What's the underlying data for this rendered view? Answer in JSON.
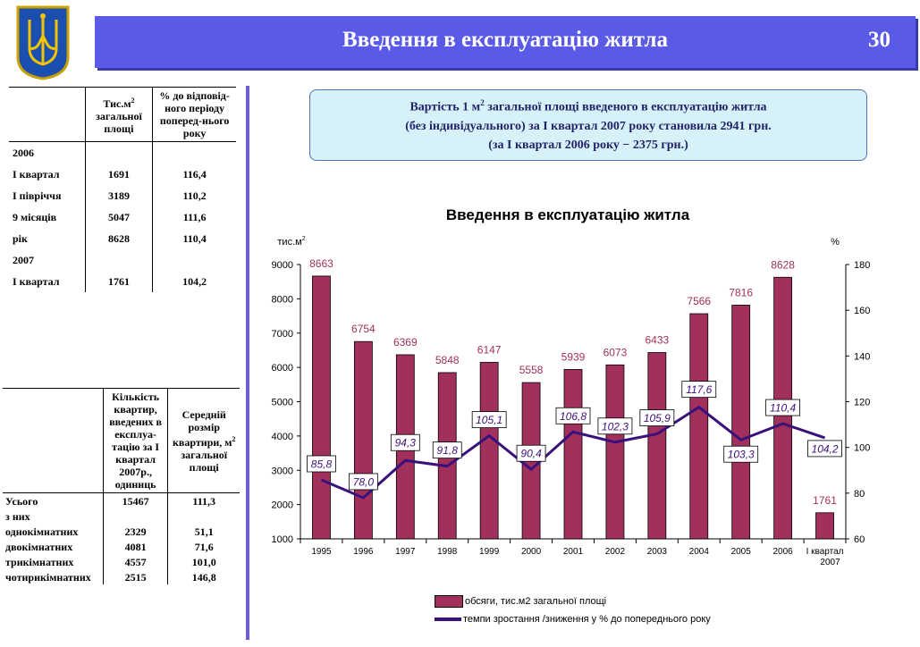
{
  "header": {
    "title": "Введення в експлуатацію житла",
    "page_number": "30"
  },
  "table1": {
    "headers": {
      "col1_a": "Тис.м",
      "col1_sup": "2",
      "col1_b": "загальної площі",
      "col2": "% до відповід-ного періоду поперед-нього року"
    },
    "rows": [
      {
        "label": "2006",
        "v1": "",
        "v2": ""
      },
      {
        "label": "І квартал",
        "v1": "1691",
        "v2": "116,4"
      },
      {
        "label": "І півріччя",
        "v1": "3189",
        "v2": "110,2"
      },
      {
        "label": "9 місяців",
        "v1": "5047",
        "v2": "111,6"
      },
      {
        "label": "рік",
        "v1": "8628",
        "v2": "110,4"
      },
      {
        "label": "2007",
        "v1": "",
        "v2": ""
      },
      {
        "label": "І квартал",
        "v1": "1761",
        "v2": "104,2"
      }
    ]
  },
  "table2": {
    "headers": {
      "col1": "Кількість квартир, введених в експлуа-тацію за І квартал 2007р., одиниць",
      "col2_a": "Середній розмір квартири, м",
      "col2_sup": "2",
      "col2_b": "загальної площі"
    },
    "rows": [
      {
        "label": "Усього",
        "v1": "15467",
        "v2": "111,3"
      },
      {
        "label": "з них",
        "v1": "",
        "v2": ""
      },
      {
        "label": "однокімнатних",
        "v1": "2329",
        "v2": "51,1"
      },
      {
        "label": "двокімнатних",
        "v1": "4081",
        "v2": "71,6"
      },
      {
        "label": "трикімнатних",
        "v1": "4557",
        "v2": "101,0"
      },
      {
        "label": "чотирикімнатних",
        "v1": "2515",
        "v2": "146,8"
      }
    ]
  },
  "info_box": {
    "line1_a": "Вартість 1 м",
    "line1_sup": "2",
    "line1_b": " загальної площі введеного в експлуатацію житла",
    "line2": "(без індивідуального) за І квартал 2007 року становила 2941 грн.",
    "line3": "(за І квартал 2006 року − 2375 грн.)"
  },
  "chart_data": {
    "type": "bar",
    "title": "Введення в експлуатацію житла",
    "categories": [
      "1995",
      "1996",
      "1997",
      "1998",
      "1999",
      "2000",
      "2001",
      "2002",
      "2003",
      "2004",
      "2005",
      "2006",
      "І квартал 2007"
    ],
    "series": [
      {
        "name": "обсяги, тис.м2 загальної площі",
        "type": "bar",
        "axis": "left",
        "color": "#a1305c",
        "values": [
          8663,
          6754,
          6369,
          5848,
          6147,
          5558,
          5939,
          6073,
          6433,
          7566,
          7816,
          8628,
          1761
        ]
      },
      {
        "name": "темпи зростання /зниження у % до попереднього року",
        "type": "line",
        "axis": "right",
        "color": "#3a107a",
        "values": [
          85.8,
          78.0,
          94.3,
          91.8,
          105.1,
          90.4,
          106.8,
          102.3,
          105.9,
          117.6,
          103.3,
          110.4,
          104.2
        ],
        "labels": [
          "85,8",
          "78,0",
          "94,3",
          "91,8",
          "105,1",
          "90,4",
          "106,8",
          "102,3",
          "105,9",
          "117,6",
          "103,3",
          "110,4",
          "104,2"
        ]
      }
    ],
    "ylabel": "тис.м",
    "ylabel_sup": "2",
    "y2label": "%",
    "ylim": [
      1000,
      9000
    ],
    "y2lim": [
      60,
      180
    ],
    "yticks": [
      "1000",
      "2000",
      "3000",
      "4000",
      "5000",
      "6000",
      "7000",
      "8000",
      "9000"
    ],
    "y2ticks": [
      "60",
      "80",
      "100",
      "120",
      "140",
      "160",
      "180"
    ],
    "grid": false,
    "legend_position": "bottom"
  }
}
